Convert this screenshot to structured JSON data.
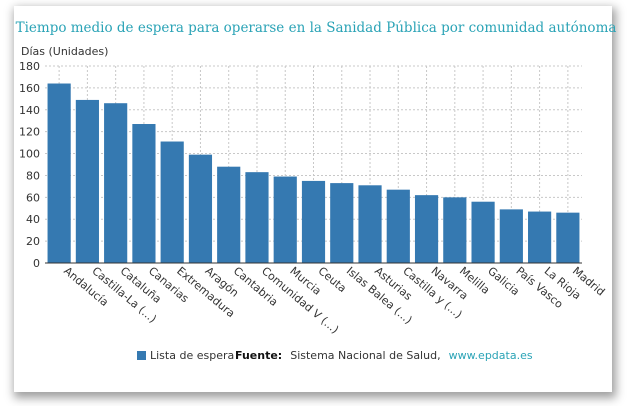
{
  "chart_data": {
    "type": "bar",
    "title": "Tiempo medio de espera para operarse en la Sanidad Pública por comunidad autónoma",
    "ylabel": "Días (Unidades)",
    "xlabel": "",
    "ylim": [
      0,
      180
    ],
    "yticks": [
      0,
      20,
      40,
      60,
      80,
      100,
      120,
      140,
      160,
      180
    ],
    "grid": true,
    "legend_position": "bottom",
    "bar_color": "#3579b1",
    "categories": [
      "Andalucía",
      "Castilla-La (...)",
      "Cataluña",
      "Canarias",
      "Extremadura",
      "Aragón",
      "Cantabria",
      "Comunidad V (...)",
      "Murcia",
      "Ceuta",
      "Islas Balea (...)",
      "Asturias",
      "Castilla y (...)",
      "Navarra",
      "Melilla",
      "Galicia",
      "País Vasco",
      "La Rioja",
      "Madrid"
    ],
    "series": [
      {
        "name": "Lista de espera",
        "values": [
          164,
          149,
          146,
          127,
          111,
          99,
          88,
          83,
          79,
          75,
          73,
          71,
          67,
          62,
          60,
          56,
          49,
          47,
          46
        ]
      }
    ]
  },
  "source": {
    "label": "Fuente:",
    "text": "Sistema Nacional de Salud,",
    "link": "www.epdata.es"
  }
}
